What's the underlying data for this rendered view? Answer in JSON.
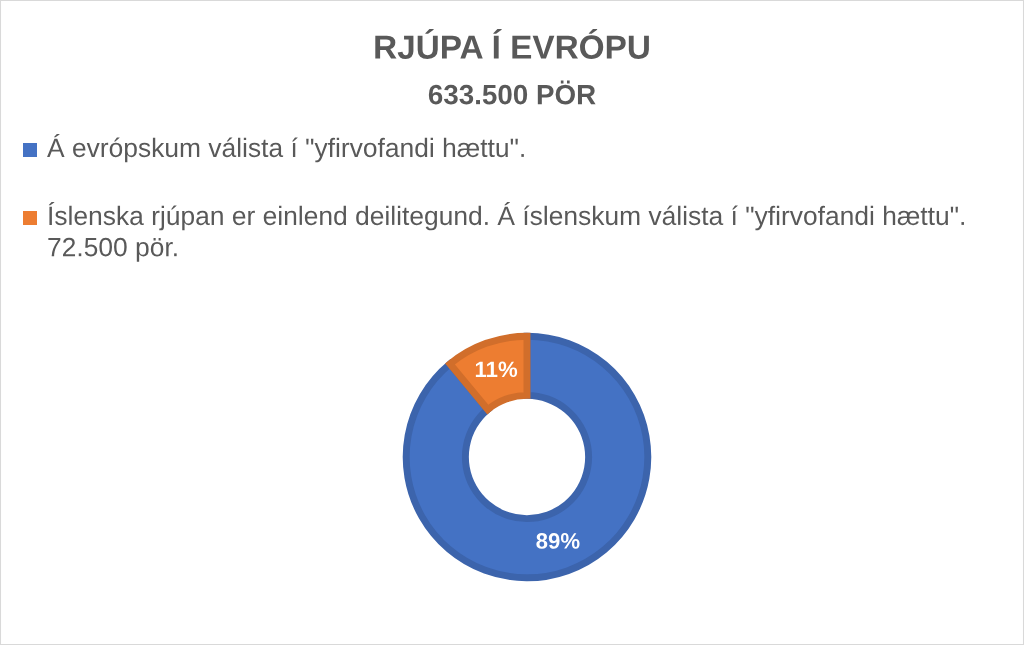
{
  "chart_data": {
    "type": "donut",
    "title": "RJÚPA Í EVRÓPU",
    "subtitle": "633.500 PÖR",
    "categories": [
      "Á evrópskum válista í \"yfirvofandi hættu\".",
      "Íslenska rjúpan er einlend deilitegund. Á íslenskum válista í \"yfirvofandi hættu\". 72.500 pör."
    ],
    "values": [
      89,
      11
    ],
    "colors": [
      "#4472c4",
      "#ed7d31"
    ],
    "value_labels": [
      "89%",
      "11%"
    ],
    "legend": "top"
  }
}
